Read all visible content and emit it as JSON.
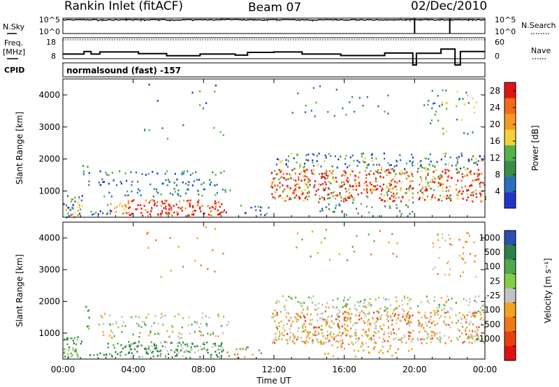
{
  "header": {
    "station": "Rankin Inlet (fitACF)",
    "beam": "Beam 07",
    "date": "02/Dec/2010"
  },
  "chart_data": [
    {
      "type": "line",
      "name": "nsky-nsearch-panel",
      "left_label": "N.Sky",
      "right_label": "N.Search",
      "left_ticks": [
        "10^5",
        "10^0"
      ],
      "right_ticks": [
        "10^5",
        "10^0"
      ],
      "scale": "log",
      "ylim": [
        1,
        100000
      ],
      "series": [
        {
          "values": [
            28000,
            31000,
            26000,
            33000,
            30000,
            35000,
            27000,
            32000,
            29000,
            36000,
            31000,
            28000,
            34000,
            30000,
            27000,
            33000,
            31000,
            29000,
            26000,
            35000,
            32000,
            30000,
            28000,
            31000
          ]
        },
        {
          "values": [
            100000,
            100000,
            100000,
            100000,
            100000,
            100000,
            100000,
            100000,
            100000,
            100000,
            100000,
            100000,
            100000,
            100000,
            100000,
            100000,
            100000,
            100000,
            100000,
            100000,
            1,
            100000,
            1,
            100000
          ]
        }
      ]
    },
    {
      "type": "line",
      "name": "freq-nave-panel",
      "left_label": "Freq. [MHz]",
      "right_label": "Nave",
      "left_ticks": [
        "18",
        "8"
      ],
      "right_ticks": [
        "60",
        "0"
      ],
      "x_hours": [
        0,
        0.9,
        1.2,
        1.6,
        2.1,
        4.3,
        5.9,
        7.8,
        9.8,
        10.5,
        12.0,
        13.6,
        15.8,
        18.3,
        19.9,
        20.1,
        21.5,
        22.3,
        22.6,
        24.0
      ],
      "freq_mhz": [
        10.2,
        10.2,
        11.4,
        10.2,
        11.2,
        10.4,
        9.4,
        10.2,
        9.7,
        11.0,
        11.2,
        10.2,
        9.5,
        10.7,
        5.0,
        10.6,
        12.6,
        5.0,
        11.4,
        11.4
      ],
      "nave_level": 54
    },
    {
      "type": "heatmap",
      "name": "power-panel",
      "ylabel": "Slant Range [km]",
      "y_ticks": [
        "1000",
        "2000",
        "3000",
        "4000"
      ],
      "yrange_km": [
        180,
        4500
      ],
      "colorbar_label": "Power [dB]",
      "colorbar_ticks": [
        "4",
        "8",
        "12",
        "16",
        "20",
        "24",
        "28"
      ],
      "colorbar_range": [
        0,
        30
      ],
      "colors": [
        "#2233cc",
        "#2a6fbf",
        "#3c8a4a",
        "#55b04c",
        "#f2d33a",
        "#f49a24",
        "#f06a1c",
        "#e01414"
      ]
    },
    {
      "type": "heatmap",
      "name": "velocity-panel",
      "ylabel": "Slant Range [km]",
      "y_ticks": [
        "1000",
        "2000",
        "3000",
        "4000"
      ],
      "yrange_km": [
        180,
        4500
      ],
      "colorbar_label": "Velocity [m s⁻¹]",
      "colorbar_ticks": [
        "1000",
        "500",
        "100",
        "25",
        "-25",
        "-100",
        "-500",
        "-1000"
      ],
      "colors": [
        "#2a4fb5",
        "#2f7f4a",
        "#4fa84a",
        "#86cc4a",
        "#c2c2c2",
        "#f4a020",
        "#f07818",
        "#e84010",
        "#e01010"
      ]
    }
  ],
  "x_axis": {
    "label": "Time UT",
    "ticks": [
      "00:00",
      "04:00",
      "08:00",
      "12:00",
      "16:00",
      "20:00",
      "00:00"
    ],
    "range_hours": [
      0,
      24
    ]
  },
  "cpid": {
    "label": "CPID",
    "text": "normalsound (fast) -157"
  }
}
